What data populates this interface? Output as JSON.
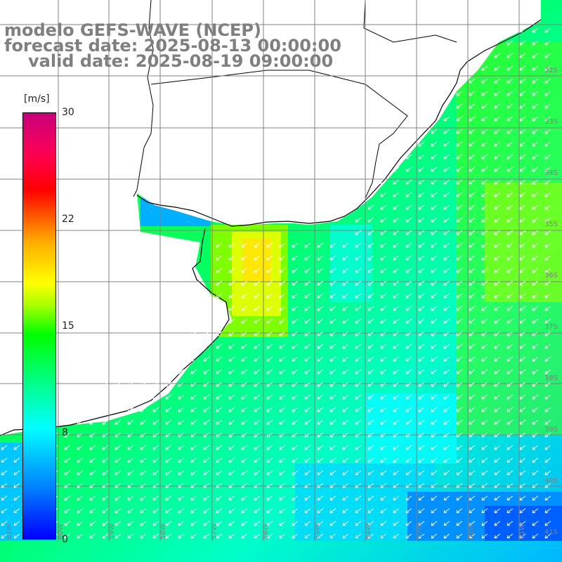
{
  "title": {
    "line1": "modelo GEFS-WAVE (NCEP)",
    "line2": "forecast date: 2025-08-13 00:00:00",
    "line3": "valid date: 2025-08-19 09:00:00"
  },
  "colorbar": {
    "unit": "[m/s]",
    "ticks": [
      "30",
      "22",
      "15",
      "8",
      "0"
    ],
    "colors": [
      "#0000ff",
      "#0080ff",
      "#00ffff",
      "#00ff90",
      "#00ff00",
      "#aaff00",
      "#ffff00",
      "#ffaa00",
      "#ff0000",
      "#c8007d"
    ]
  },
  "lat_labels": [
    "32S",
    "33S",
    "34S",
    "35S",
    "36S",
    "37S",
    "38S",
    "39S",
    "40S",
    "41S"
  ],
  "lon_labels": [
    "61W",
    "60W",
    "59W",
    "58W",
    "57W",
    "56W",
    "55W",
    "54W",
    "53W",
    "52W",
    "51W"
  ],
  "wind_direction": "from northeast",
  "map_colors": {
    "land": "#ffffff",
    "coast": "#000000",
    "grid": "#808080",
    "arrows": "#ffffff"
  }
}
